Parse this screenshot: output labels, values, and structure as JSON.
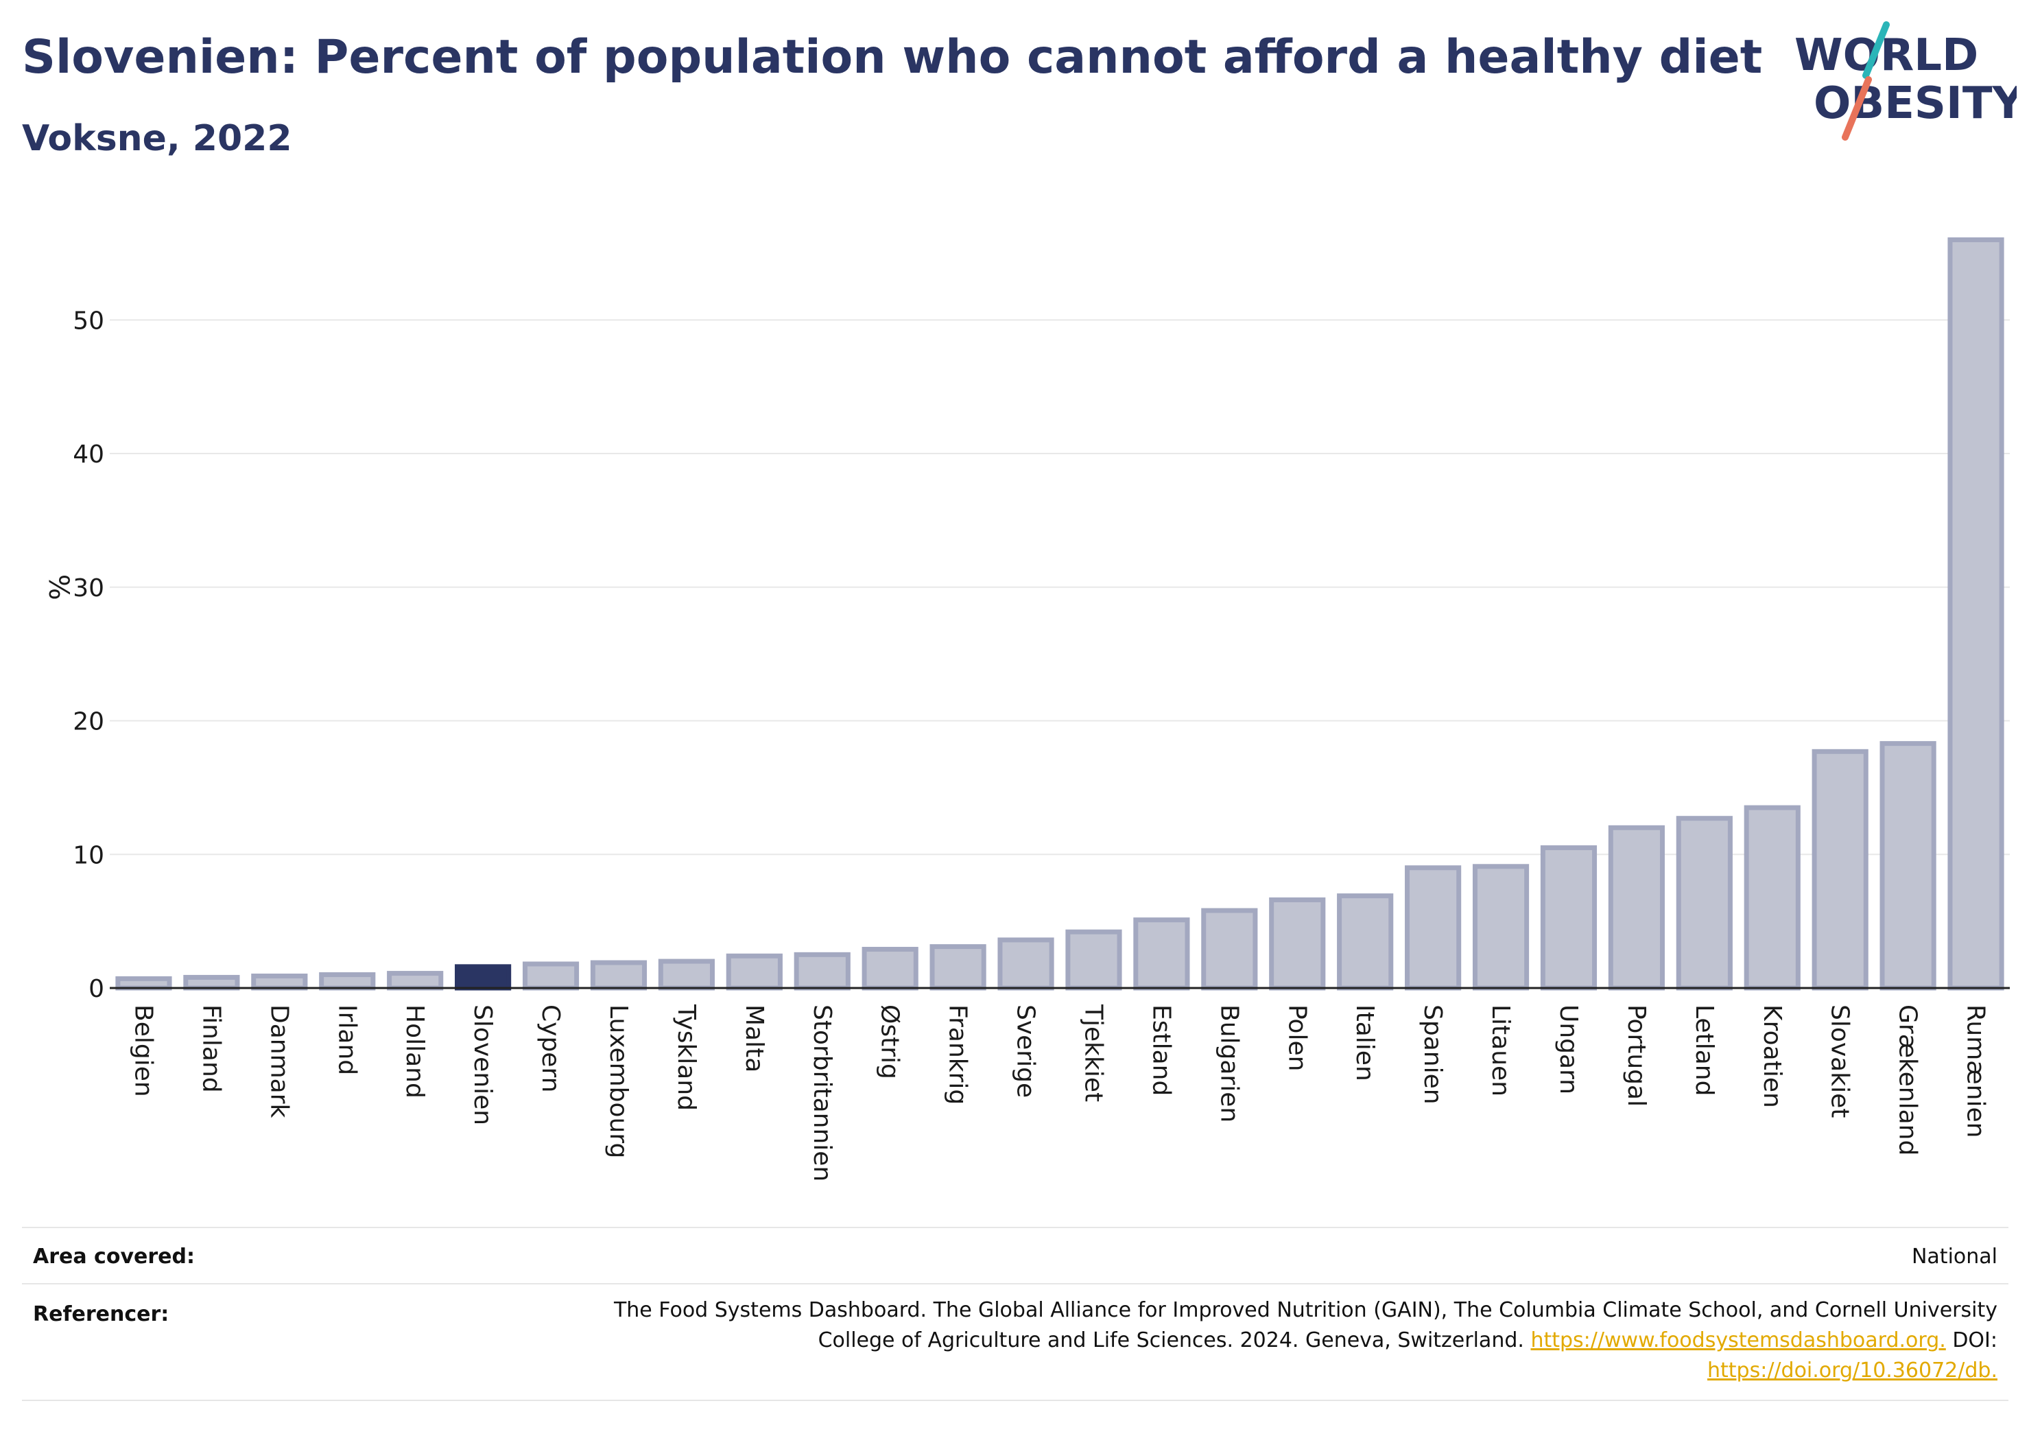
{
  "header": {
    "title": "Slovenien: Percent of population who cannot afford a healthy diet",
    "subtitle": "Voksne, 2022"
  },
  "logo": {
    "line1": "WORLD",
    "line2": "OBESITY"
  },
  "colors": {
    "highlight": "#2a3563",
    "bar_fill": "#c0c3d1",
    "bar_stroke": "#a3a8c0",
    "title": "#2a3563",
    "grid": "#e8e8e8",
    "accent_teal": "#2bb5b8",
    "accent_coral": "#e8735a",
    "link": "#e2a900"
  },
  "chart_data": {
    "type": "bar",
    "title": "Slovenien: Percent of population who cannot afford a healthy diet",
    "subtitle": "Voksne, 2022",
    "xlabel": "",
    "ylabel": "%",
    "ylim": [
      0,
      57
    ],
    "yticks": [
      0,
      10,
      20,
      30,
      40,
      50
    ],
    "grid": true,
    "highlight": "Slovenien",
    "categories": [
      "Belgien",
      "Finland",
      "Danmark",
      "Irland",
      "Holland",
      "Slovenien",
      "Cypern",
      "Luxembourg",
      "Tyskland",
      "Malta",
      "Storbritannien",
      "Østrig",
      "Frankrig",
      "Sverige",
      "Tjekkiet",
      "Estland",
      "Bulgarien",
      "Polen",
      "Italien",
      "Spanien",
      "Litauen",
      "Ungarn",
      "Portugal",
      "Letland",
      "Kroatien",
      "Slovakiet",
      "Grækenland",
      "Rumænien"
    ],
    "values": [
      0.7,
      0.8,
      0.9,
      1.0,
      1.1,
      1.6,
      1.8,
      1.9,
      2.0,
      2.4,
      2.5,
      2.9,
      3.1,
      3.6,
      4.2,
      5.1,
      5.8,
      6.6,
      6.9,
      9.0,
      9.1,
      10.5,
      12.0,
      12.7,
      13.5,
      17.7,
      18.3,
      56.0
    ]
  },
  "footer": {
    "area_label": "Area covered:",
    "area_value": "National",
    "ref_label": "Referencer:",
    "ref_line1": "The Food Systems Dashboard. The Global Alliance for Improved Nutrition (GAIN), The Columbia Climate School, and Cornell University",
    "ref_line2": "College of Agriculture and Life Sciences. 2024. Geneva, Switzerland.",
    "ref_link1": "https://www.foodsystemsdashboard.org.",
    "ref_doi": "DOI:",
    "ref_link2": "https://doi.org/10.36072/db."
  }
}
